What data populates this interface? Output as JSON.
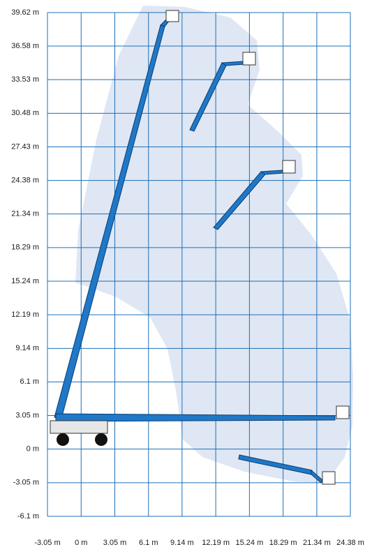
{
  "chart_data": {
    "type": "reach",
    "xlim": [
      -3.05,
      24.38
    ],
    "ylim": [
      -6.1,
      39.62
    ],
    "xticks": [
      {
        "value": -3.05,
        "label": "-3.05 m"
      },
      {
        "value": 0,
        "label": "0 m"
      },
      {
        "value": 3.05,
        "label": "3.05 m"
      },
      {
        "value": 6.1,
        "label": "6.1 m"
      },
      {
        "value": 9.14,
        "label": "9.14 m"
      },
      {
        "value": 12.19,
        "label": "12.19 m"
      },
      {
        "value": 15.24,
        "label": "15.24 m"
      },
      {
        "value": 18.29,
        "label": "18.29 m"
      },
      {
        "value": 21.34,
        "label": "21.34 m"
      },
      {
        "value": 24.38,
        "label": "24.38 m"
      }
    ],
    "yticks": [
      {
        "value": -6.1,
        "label": "-6.1 m"
      },
      {
        "value": -3.05,
        "label": "-3.05 m"
      },
      {
        "value": 0,
        "label": "0 m"
      },
      {
        "value": 3.05,
        "label": "3.05 m"
      },
      {
        "value": 6.1,
        "label": "6.1 m"
      },
      {
        "value": 9.14,
        "label": "9.14 m"
      },
      {
        "value": 12.19,
        "label": "12.19 m"
      },
      {
        "value": 15.24,
        "label": "15.24 m"
      },
      {
        "value": 18.29,
        "label": "18.29 m"
      },
      {
        "value": 21.34,
        "label": "21.34 m"
      },
      {
        "value": 24.38,
        "label": "24.38 m"
      },
      {
        "value": 27.43,
        "label": "27.43 m"
      },
      {
        "value": 30.48,
        "label": "30.48 m"
      },
      {
        "value": 33.53,
        "label": "33.53 m"
      },
      {
        "value": 36.58,
        "label": "36.58 m"
      },
      {
        "value": 39.62,
        "label": "39.62 m"
      }
    ],
    "grid": true,
    "grid_color": "#1d6fb8"
  }
}
